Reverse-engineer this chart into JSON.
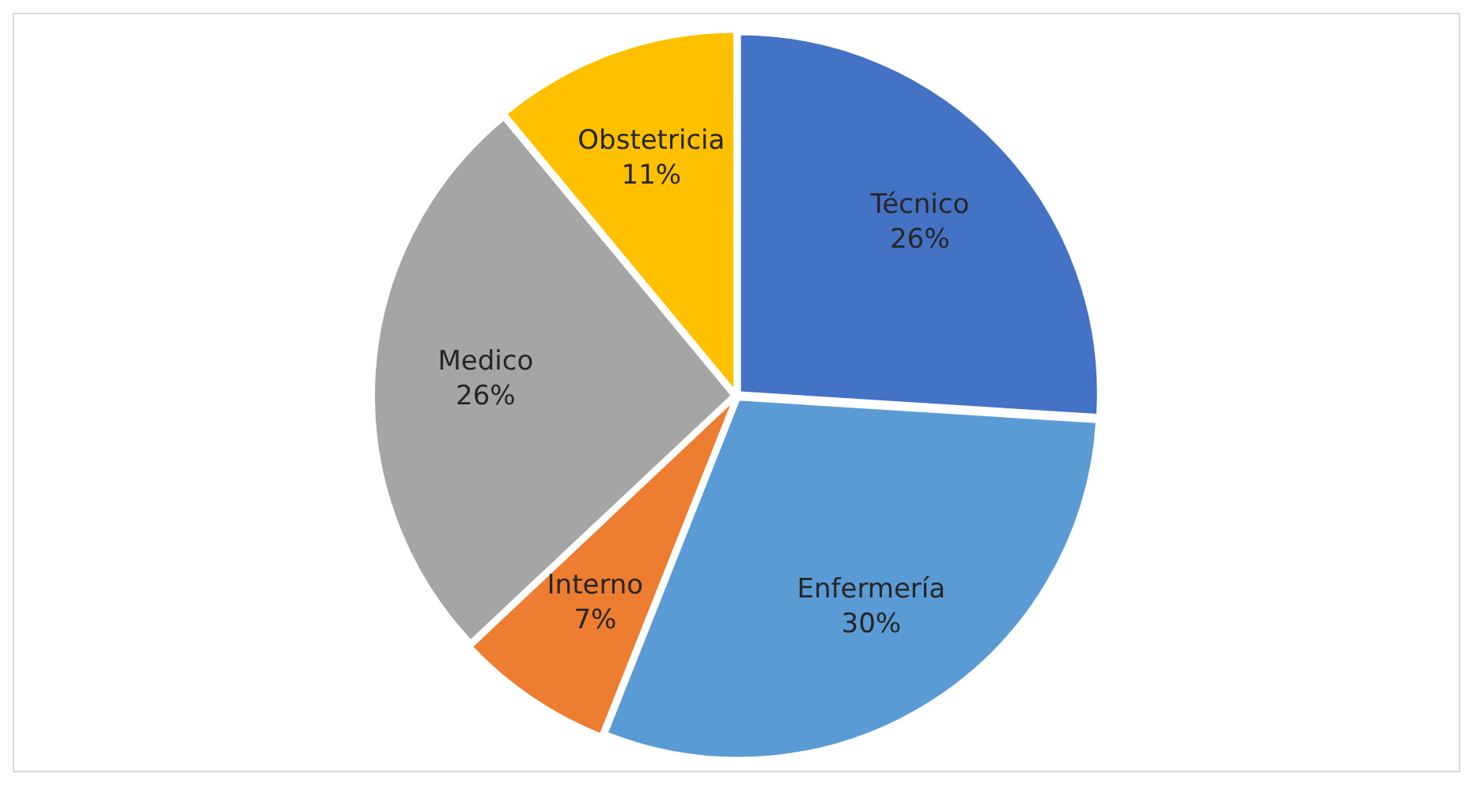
{
  "chart_data": {
    "type": "pie",
    "categories": [
      "Técnico",
      "Enfermería",
      "Interno",
      "Medico",
      "Obstetricia"
    ],
    "values": [
      26,
      30,
      7,
      26,
      11
    ],
    "colors": [
      "#4472c4",
      "#5b9bd5",
      "#ed7d31",
      "#a5a5a5",
      "#ffc000"
    ],
    "value_labels": [
      "26%",
      "30%",
      "7%",
      "26%",
      "11%"
    ],
    "legend": false
  }
}
